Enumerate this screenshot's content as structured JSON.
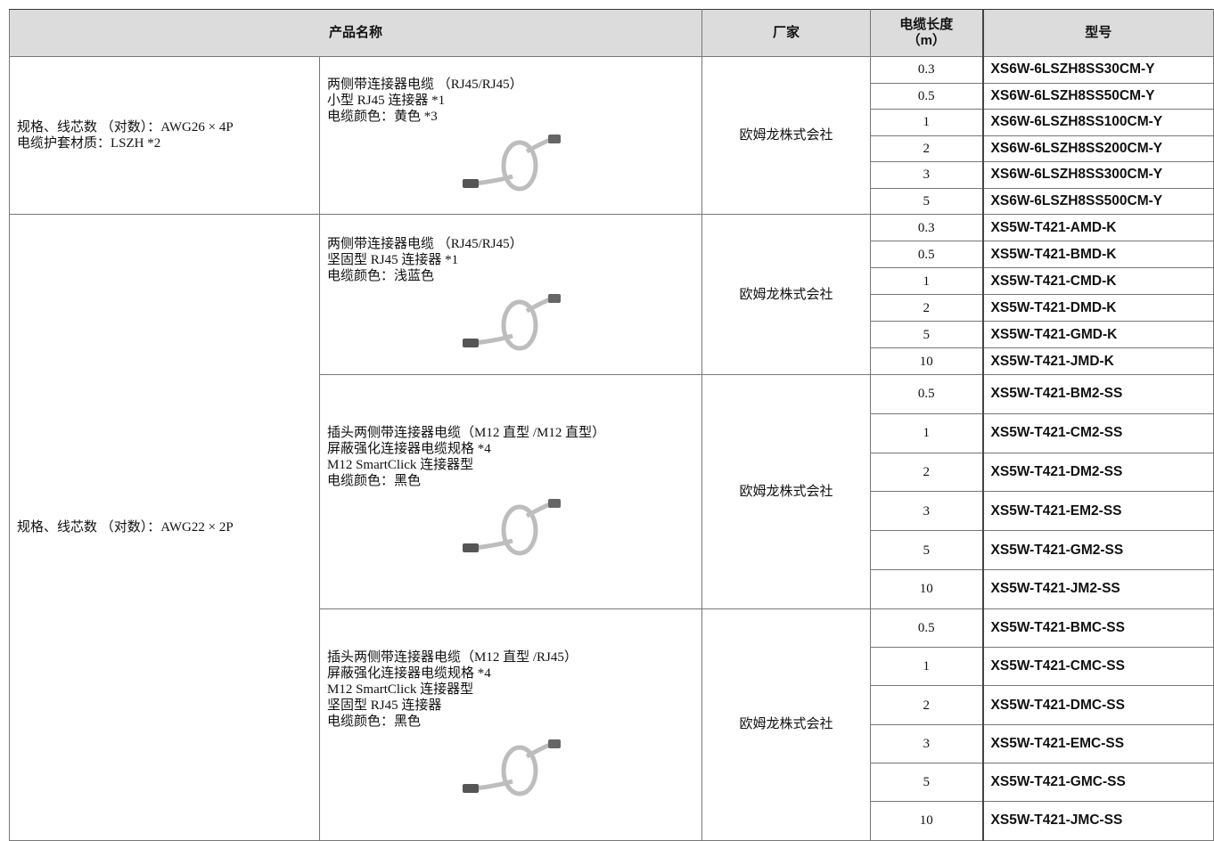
{
  "header": {
    "product_name": "产品名称",
    "maker": "厂家",
    "length": [
      "电缆长度",
      "（m）"
    ],
    "model": "型号"
  },
  "groups": [
    {
      "spec": [
        "规格、线芯数 （对数）：AWG26 × 4P",
        "电缆护套材质：LSZH *2"
      ],
      "products": [
        {
          "description": [
            "两侧带连接器电缆 （RJ45/RJ45）",
            "小型 RJ45 连接器 *1",
            "电缆颜色：黄色 *3"
          ],
          "maker": "欧姆龙株式会社",
          "rows": [
            {
              "length": "0.3",
              "model": "XS6W-6LSZH8SS30CM-Y"
            },
            {
              "length": "0.5",
              "model": "XS6W-6LSZH8SS50CM-Y"
            },
            {
              "length": "1",
              "model": "XS6W-6LSZH8SS100CM-Y"
            },
            {
              "length": "2",
              "model": "XS6W-6LSZH8SS200CM-Y"
            },
            {
              "length": "3",
              "model": "XS6W-6LSZH8SS300CM-Y"
            },
            {
              "length": "5",
              "model": "XS6W-6LSZH8SS500CM-Y"
            }
          ]
        }
      ]
    },
    {
      "spec": [
        "规格、线芯数 （对数）：AWG22 × 2P"
      ],
      "products": [
        {
          "description": [
            "两侧带连接器电缆 （RJ45/RJ45）",
            "坚固型 RJ45 连接器 *1",
            "电缆颜色：浅蓝色"
          ],
          "maker": "欧姆龙株式会社",
          "rows": [
            {
              "length": "0.3",
              "model": "XS5W-T421-AMD-K"
            },
            {
              "length": "0.5",
              "model": "XS5W-T421-BMD-K"
            },
            {
              "length": "1",
              "model": "XS5W-T421-CMD-K"
            },
            {
              "length": "2",
              "model": "XS5W-T421-DMD-K"
            },
            {
              "length": "5",
              "model": "XS5W-T421-GMD-K"
            },
            {
              "length": "10",
              "model": "XS5W-T421-JMD-K"
            }
          ]
        },
        {
          "description": [
            "插头两侧带连接器电缆（M12 直型 /M12 直型）",
            "屏蔽强化连接器电缆规格 *4",
            "M12 SmartClick 连接器型",
            "电缆颜色：黑色"
          ],
          "maker": "欧姆龙株式会社",
          "rows": [
            {
              "length": "0.5",
              "model": "XS5W-T421-BM2-SS"
            },
            {
              "length": "1",
              "model": "XS5W-T421-CM2-SS"
            },
            {
              "length": "2",
              "model": "XS5W-T421-DM2-SS"
            },
            {
              "length": "3",
              "model": "XS5W-T421-EM2-SS"
            },
            {
              "length": "5",
              "model": "XS5W-T421-GM2-SS"
            },
            {
              "length": "10",
              "model": "XS5W-T421-JM2-SS"
            }
          ]
        },
        {
          "description": [
            "插头两侧带连接器电缆（M12 直型 /RJ45）",
            "屏蔽强化连接器电缆规格 *4",
            "M12 SmartClick 连接器型",
            "坚固型 RJ45 连接器",
            "电缆颜色：黑色"
          ],
          "maker": "欧姆龙株式会社",
          "rows": [
            {
              "length": "0.5",
              "model": "XS5W-T421-BMC-SS"
            },
            {
              "length": "1",
              "model": "XS5W-T421-CMC-SS"
            },
            {
              "length": "2",
              "model": "XS5W-T421-DMC-SS"
            },
            {
              "length": "3",
              "model": "XS5W-T421-EMC-SS"
            },
            {
              "length": "5",
              "model": "XS5W-T421-GMC-SS"
            },
            {
              "length": "10",
              "model": "XS5W-T421-JMC-SS"
            }
          ]
        }
      ]
    }
  ]
}
